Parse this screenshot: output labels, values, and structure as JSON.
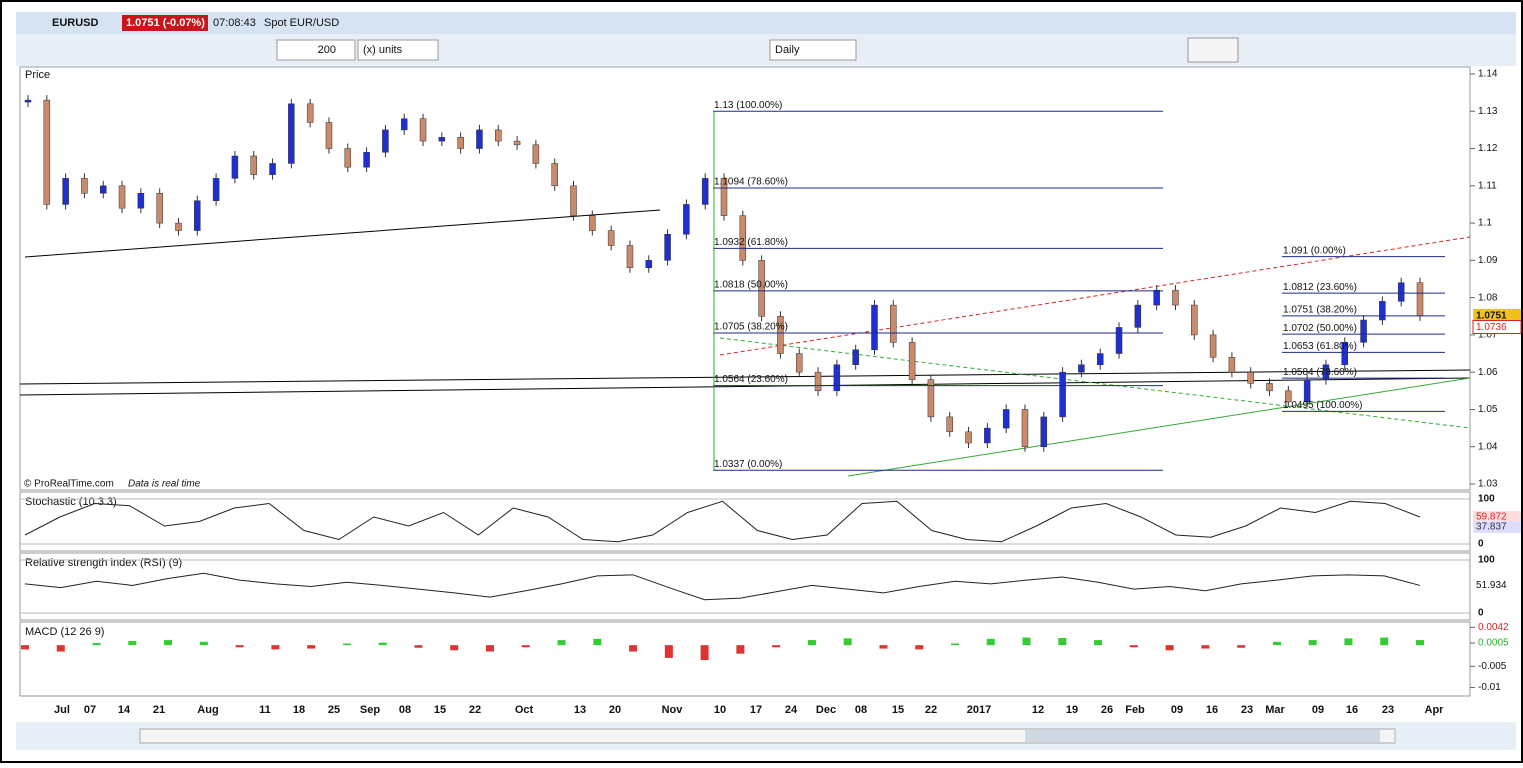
{
  "header": {
    "symbol": "EURUSD",
    "quote": "1.0751 (-0.07%)",
    "time": "07:08:43",
    "name": "Spot EUR/USD"
  },
  "toolbar": {
    "units_count": "200",
    "units": "(x) units",
    "period": "Daily"
  },
  "price": {
    "label": "Price",
    "footer_brand": "© ProRealTime.com",
    "footer_note": "Data is real time",
    "ylim": [
      1.03,
      1.14
    ],
    "yticks": [
      1.14,
      1.13,
      1.12,
      1.11,
      1.1,
      1.09,
      1.08,
      1.07,
      1.06,
      1.05,
      1.04,
      1.03
    ],
    "last": 1.0751,
    "ma_last": 1.0736,
    "closes": [
      1.133,
      1.105,
      1.112,
      1.108,
      1.11,
      1.104,
      1.108,
      1.1,
      1.098,
      1.106,
      1.112,
      1.118,
      1.113,
      1.116,
      1.132,
      1.127,
      1.12,
      1.115,
      1.119,
      1.125,
      1.128,
      1.122,
      1.123,
      1.12,
      1.125,
      1.122,
      1.121,
      1.116,
      1.11,
      1.102,
      1.098,
      1.094,
      1.088,
      1.09,
      1.097,
      1.105,
      1.112,
      1.102,
      1.09,
      1.075,
      1.065,
      1.06,
      1.055,
      1.062,
      1.066,
      1.078,
      1.068,
      1.058,
      1.048,
      1.044,
      1.041,
      1.045,
      1.05,
      1.04,
      1.048,
      1.06,
      1.062,
      1.065,
      1.072,
      1.078,
      1.082,
      1.078,
      1.07,
      1.064,
      1.06,
      1.057,
      1.055,
      1.052,
      1.058,
      1.062,
      1.068,
      1.074,
      1.079,
      1.084,
      1.0751
    ],
    "fib1": [
      {
        "value": 1.13,
        "label": "1.13 (100.00%)"
      },
      {
        "value": 1.1094,
        "label": "1.1094 (78.60%)"
      },
      {
        "value": 1.0932,
        "label": "1.0932 (61.80%)"
      },
      {
        "value": 1.0818,
        "label": "1.0818 (50.00%)"
      },
      {
        "value": 1.0705,
        "label": "1.0705 (38.20%)"
      },
      {
        "value": 1.0564,
        "label": "1.0564 (23.60%)"
      },
      {
        "value": 1.0337,
        "label": "1.0337 (0.00%)"
      }
    ],
    "fib2": [
      {
        "value": 1.091,
        "label": "1.091 (0.00%)"
      },
      {
        "value": 1.0812,
        "label": "1.0812 (23.60%)"
      },
      {
        "value": 1.0751,
        "label": "1.0751 (38.20%)"
      },
      {
        "value": 1.0702,
        "label": "1.0702 (50.00%)"
      },
      {
        "value": 1.0653,
        "label": "1.0653 (61.80%)"
      },
      {
        "value": 1.0584,
        "label": "1.0584 (78.60%)"
      },
      {
        "value": 1.0495,
        "label": "1.0495 (100.00%)"
      }
    ]
  },
  "stochastic": {
    "label": "Stochastic (10 3 3)",
    "ylim": [
      0,
      100
    ],
    "yticks": [
      100,
      0
    ],
    "k": 59.872,
    "d": 37.837,
    "values": [
      20,
      60,
      90,
      85,
      40,
      50,
      80,
      90,
      30,
      10,
      60,
      40,
      70,
      20,
      80,
      60,
      10,
      5,
      20,
      70,
      95,
      30,
      10,
      20,
      90,
      95,
      30,
      10,
      5,
      40,
      80,
      90,
      60,
      20,
      15,
      40,
      80,
      70,
      95,
      90,
      60
    ]
  },
  "rsi": {
    "label": "Relative strength index (RSI) (9)",
    "ylim": [
      0,
      100
    ],
    "yticks": [
      100,
      0
    ],
    "last": 51.934,
    "values": [
      55,
      48,
      60,
      52,
      65,
      75,
      62,
      55,
      50,
      58,
      52,
      45,
      38,
      30,
      42,
      55,
      70,
      72,
      48,
      25,
      28,
      40,
      52,
      45,
      38,
      50,
      60,
      55,
      62,
      68,
      58,
      45,
      50,
      42,
      55,
      62,
      70,
      72,
      70,
      52
    ]
  },
  "macd": {
    "label": "MACD (12 26 9)",
    "ylim": [
      -0.012,
      0.005
    ],
    "yticks": [
      {
        "value": 0.0042,
        "label": "0.0042"
      },
      {
        "value": 0.0005,
        "label": "0.0005"
      },
      {
        "value": -0.005,
        "label": "-0.005"
      },
      {
        "value": -0.01,
        "label": "-0.01"
      }
    ],
    "hist": [
      -0.001,
      -0.0015,
      0.0005,
      0.001,
      0.0012,
      0.0008,
      -0.0005,
      -0.001,
      -0.0008,
      0.0004,
      0.0006,
      -0.0006,
      -0.0012,
      -0.0015,
      -0.0005,
      0.0012,
      0.0015,
      -0.0015,
      -0.003,
      -0.0035,
      -0.002,
      -0.0005,
      0.0012,
      0.0016,
      -0.0008,
      -0.001,
      0.0004,
      0.0015,
      0.0018,
      0.0017,
      0.0012,
      -0.0005,
      -0.0012,
      -0.0008,
      -0.0006,
      0.0008,
      0.0012,
      0.0016,
      0.0018,
      0.0012
    ]
  },
  "xaxis": {
    "labels": [
      "Jul",
      "07",
      "14",
      "21",
      "Aug",
      "11",
      "18",
      "25",
      "Sep",
      "08",
      "15",
      "22",
      "Oct",
      "13",
      "20",
      "Nov",
      "10",
      "17",
      "24",
      "Dec",
      "08",
      "15",
      "22",
      "2017",
      "12",
      "19",
      "26",
      "Feb",
      "09",
      "16",
      "23",
      "Mar",
      "09",
      "16",
      "23",
      "Apr"
    ]
  }
}
